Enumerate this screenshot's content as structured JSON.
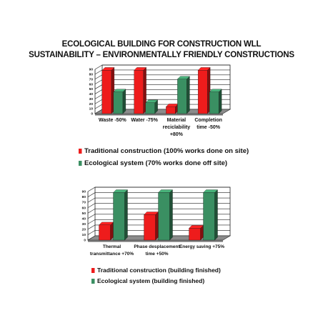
{
  "title_line1": "ECOLOGICAL BUILDING FOR CONSTRUCTION WLL",
  "title_line2": "SUSTAINABILITY – ENVIRONMENTALLY FRIENDLY CONSTRUCTIONS",
  "colors": {
    "traditional": "#ee1c1c",
    "ecological": "#3a8f62",
    "grid": "#222222"
  },
  "chart_data": [
    {
      "type": "bar",
      "categories": [
        [
          "Waste -50%"
        ],
        [
          "Water -75%"
        ],
        [
          "Material",
          "reciclability",
          "+80%"
        ],
        [
          "Completion",
          "time -50%"
        ]
      ],
      "ylim": [
        0,
        90
      ],
      "yticks": [
        0,
        10,
        20,
        30,
        40,
        50,
        60,
        70,
        80,
        90
      ],
      "grid": true,
      "legend": "bottom",
      "series": [
        {
          "name": "Traditional construction (100% works done on site)",
          "values": [
            88,
            88,
            14,
            88
          ]
        },
        {
          "name": "Ecological system (70% works done off site)",
          "values": [
            44,
            22,
            70,
            44
          ]
        }
      ]
    },
    {
      "type": "bar",
      "categories": [
        [
          "Thermal",
          "transmittance +70%"
        ],
        [
          "Phase desplacement",
          "time +50%"
        ],
        [
          "Energy saving +75%"
        ]
      ],
      "ylim": [
        0,
        90
      ],
      "yticks": [
        0,
        10,
        20,
        30,
        40,
        50,
        60,
        70,
        80,
        90
      ],
      "grid": true,
      "legend": "bottom",
      "series": [
        {
          "name": "Traditional construction (building finished)",
          "values": [
            28,
            47,
            22
          ]
        },
        {
          "name": "Ecological system (building finished)",
          "values": [
            88,
            88,
            88
          ]
        }
      ]
    }
  ]
}
